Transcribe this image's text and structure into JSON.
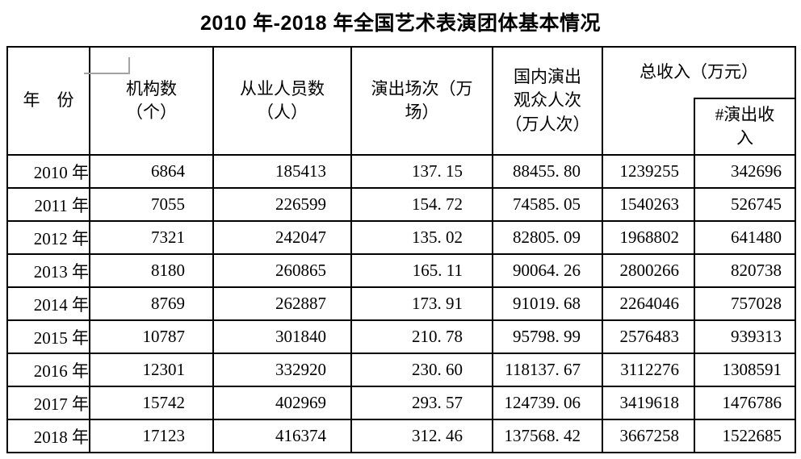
{
  "title": "2010 年-2018 年全国艺术表演团体基本情况",
  "colors": {
    "background": "#ffffff",
    "border": "#000000",
    "text": "#000000",
    "marker_gray": "#a3a3a3"
  },
  "table": {
    "column_order": [
      "year",
      "institutions",
      "employees",
      "performances",
      "audience",
      "total_income",
      "performance_income"
    ],
    "headers": {
      "year": "年　份",
      "institutions": "机构数\n（个）",
      "employees": "从业人员数\n（人）",
      "performances": "演出场次（万\n场）",
      "audience": "国内演出\n观众人次\n（万人次）",
      "total_income": "总收入（万元）",
      "performance_income": "#演出收\n入"
    },
    "rows": [
      {
        "year": "2010 年",
        "institutions": "6864",
        "employees": "185413",
        "performances": "137. 15",
        "audience": "88455. 80",
        "total_income": "1239255",
        "performance_income": "342696"
      },
      {
        "year": "2011 年",
        "institutions": "7055",
        "employees": "226599",
        "performances": "154. 72",
        "audience": "74585. 05",
        "total_income": "1540263",
        "performance_income": "526745"
      },
      {
        "year": "2012 年",
        "institutions": "7321",
        "employees": "242047",
        "performances": "135. 02",
        "audience": "82805. 09",
        "total_income": "1968802",
        "performance_income": "641480"
      },
      {
        "year": "2013 年",
        "institutions": "8180",
        "employees": "260865",
        "performances": "165. 11",
        "audience": "90064. 26",
        "total_income": "2800266",
        "performance_income": "820738"
      },
      {
        "year": "2014 年",
        "institutions": "8769",
        "employees": "262887",
        "performances": "173. 91",
        "audience": "91019. 68",
        "total_income": "2264046",
        "performance_income": "757028"
      },
      {
        "year": "2015 年",
        "institutions": "10787",
        "employees": "301840",
        "performances": "210. 78",
        "audience": "95798. 99",
        "total_income": "2576483",
        "performance_income": "939313"
      },
      {
        "year": "2016 年",
        "institutions": "12301",
        "employees": "332920",
        "performances": "230. 60",
        "audience": "118137. 67",
        "total_income": "3112276",
        "performance_income": "1308591"
      },
      {
        "year": "2017 年",
        "institutions": "15742",
        "employees": "402969",
        "performances": "293. 57",
        "audience": "124739. 06",
        "total_income": "3419618",
        "performance_income": "1476786"
      },
      {
        "year": "2018 年",
        "institutions": "17123",
        "employees": "416374",
        "performances": "312. 46",
        "audience": "137568. 42",
        "total_income": "3667258",
        "performance_income": "1522685"
      }
    ]
  }
}
